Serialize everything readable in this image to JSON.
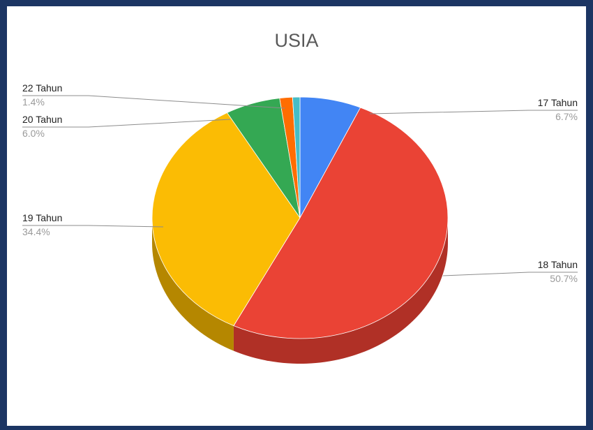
{
  "chart_data": {
    "type": "pie",
    "three_d": true,
    "title": "USIA",
    "slices": [
      {
        "label": "17 Tahun",
        "value": 6.7,
        "pct_label": "6.7%",
        "color": "#4285f4",
        "side": "#2f62b8"
      },
      {
        "label": "18 Tahun",
        "value": 50.7,
        "pct_label": "50.7%",
        "color": "#ea4335",
        "side": "#b03026"
      },
      {
        "label": "19 Tahun",
        "value": 34.4,
        "pct_label": "34.4%",
        "color": "#fbbc04",
        "side": "#b58700"
      },
      {
        "label": "20 Tahun",
        "value": 6.0,
        "pct_label": "6.0%",
        "color": "#34a853",
        "side": "#24783b"
      },
      {
        "label": "22 Tahun",
        "value": 1.4,
        "pct_label": "1.4%",
        "color": "#ff6d01",
        "side": "#b94f00"
      },
      {
        "label": "",
        "value": 0.8,
        "pct_label": "",
        "color": "#46bdc6",
        "side": "#2f8a90"
      }
    ],
    "legend": "none (leader-line labels)"
  }
}
